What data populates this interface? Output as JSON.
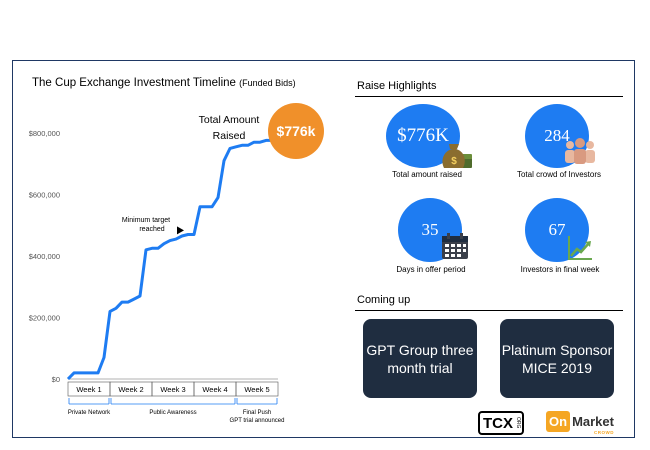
{
  "chart_data": {
    "type": "line",
    "title": "The Cup Exchange Investment Timeline",
    "subtitle": "(Funded Bids)",
    "x": [
      0,
      1,
      2,
      3,
      4,
      5,
      6,
      7,
      8,
      9,
      10,
      11,
      12,
      13,
      14,
      15,
      16,
      17,
      18,
      19,
      20,
      21,
      22,
      23,
      24,
      25,
      26,
      27,
      28,
      29,
      30,
      31,
      32,
      33,
      34,
      35
    ],
    "series": [
      {
        "values": [
          0,
          20000,
          20000,
          20000,
          20000,
          20000,
          70000,
          220000,
          230000,
          250000,
          250000,
          260000,
          270000,
          420000,
          425000,
          425000,
          440000,
          450000,
          455000,
          465000,
          470000,
          470000,
          560000,
          560000,
          560000,
          590000,
          710000,
          750000,
          755000,
          760000,
          760000,
          770000,
          770000,
          776000,
          776000,
          776000
        ]
      }
    ],
    "ylim": [
      0,
      800000
    ],
    "y_ticks": [
      "$0",
      "$200,000",
      "$400,000",
      "$600,000",
      "$800,000"
    ],
    "y_tick_values": [
      0,
      200000,
      400000,
      600000,
      800000
    ],
    "weeks": [
      "Week 1",
      "Week 2",
      "Week 3",
      "Week 4",
      "Week 5"
    ],
    "week_bounds": [
      0,
      7,
      14,
      21,
      28,
      35
    ],
    "phases": [
      {
        "label": "Private Network",
        "from": 0,
        "to": 7
      },
      {
        "label": "Public Awareness",
        "from": 7,
        "to": 28
      },
      {
        "label": "Final Push",
        "sub": "GPT trial announced",
        "from": 28,
        "to": 35
      }
    ],
    "annotations": {
      "total_label_1": "Total Amount",
      "total_label_2": "Raised",
      "total_badge": "$776k",
      "min_target_1": "Minimum  target",
      "min_target_2": "reached",
      "min_target_day": 20,
      "min_target_value": 467000
    },
    "line_color": "#1e7cf2",
    "badge_color": "#f0902a",
    "grid": false
  },
  "highlights": {
    "title": "Raise Highlights",
    "stats": [
      {
        "value": "$776K",
        "label": "Total amount raised",
        "icon": "money-bag-icon"
      },
      {
        "value": "284",
        "label": "Total crowd  of Investors",
        "icon": "crowd-icon"
      },
      {
        "value": "35",
        "label": "Days in offer  period",
        "icon": "calendar-icon"
      },
      {
        "value": "67",
        "label": "Investors in final week",
        "icon": "growth-chart-icon"
      }
    ]
  },
  "coming_up": {
    "title": "Coming up",
    "cards": [
      "GPT Group three month trial",
      "Platinum Sponsor MICE 2019"
    ]
  },
  "logos": {
    "tcx": "TCX",
    "tcx_reg": "ORG",
    "om_on": "On",
    "om_market": "Market",
    "om_crowd": "CROWD"
  }
}
